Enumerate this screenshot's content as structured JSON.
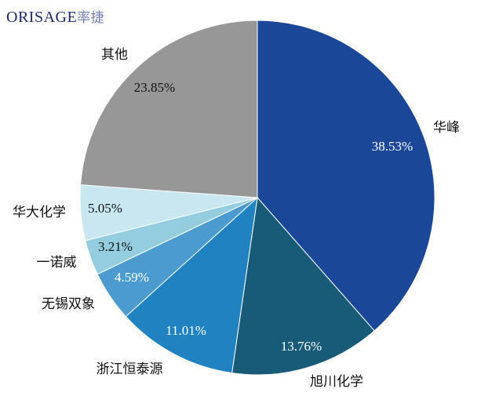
{
  "logo": {
    "brand_main": "ORISAGE",
    "brand_cn": "率捷"
  },
  "colors": {
    "华峰": "#1a4797",
    "旭川化学": "#175b78",
    "浙江恒泰源": "#2182c2",
    "无锡双象": "#4b9bd1",
    "一诺威": "#94cddf",
    "华大化学": "#c8e7f1",
    "其他": "#979797"
  },
  "chart_data": {
    "type": "pie",
    "start": "12 o'clock",
    "direction": "clockwise",
    "legend": "none",
    "slices": [
      {
        "label": "华峰",
        "value": 38.53,
        "value_label": "38.53%",
        "color": "#1a4797",
        "value_text_color": "#ffffff"
      },
      {
        "label": "旭川化学",
        "value": 13.76,
        "value_label": "13.76%",
        "color": "#175b78",
        "value_text_color": "#ffffff"
      },
      {
        "label": "浙江恒泰源",
        "value": 11.01,
        "value_label": "11.01%",
        "color": "#2182c2",
        "value_text_color": "#ffffff"
      },
      {
        "label": "无锡双象",
        "value": 4.59,
        "value_label": "4.59%",
        "color": "#4b9bd1",
        "value_text_color": "#ffffff"
      },
      {
        "label": "一诺威",
        "value": 3.21,
        "value_label": "3.21%",
        "color": "#94cddf",
        "value_text_color": "#111111"
      },
      {
        "label": "华大化学",
        "value": 5.05,
        "value_label": "5.05%",
        "color": "#c8e7f1",
        "value_text_color": "#111111"
      },
      {
        "label": "其他",
        "value": 23.85,
        "value_label": "23.85%",
        "color": "#979797",
        "value_text_color": "#111111"
      }
    ]
  }
}
